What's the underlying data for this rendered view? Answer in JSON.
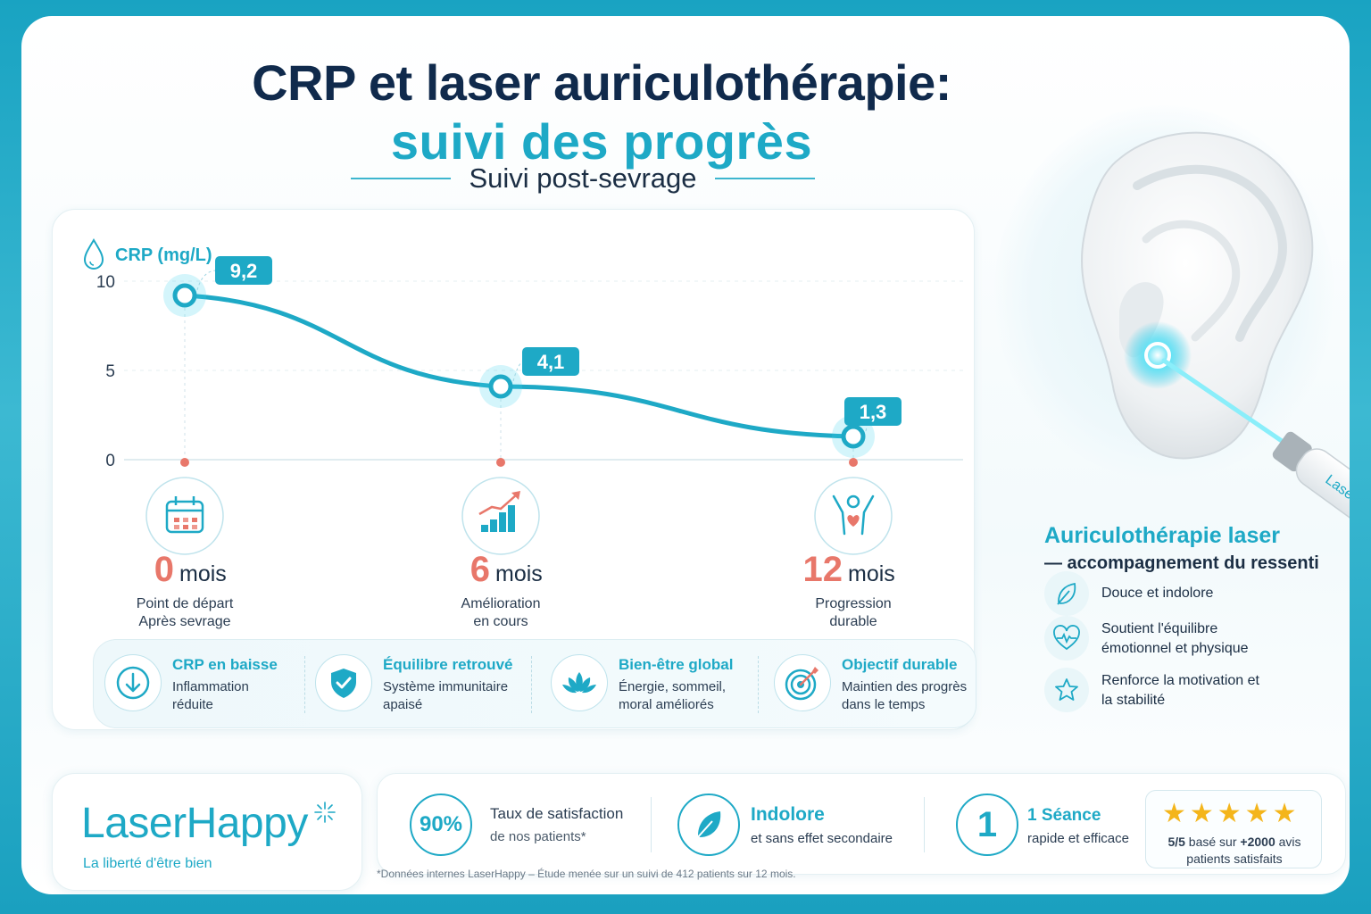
{
  "header": {
    "title_line1": "CRP et laser auriculothérapie:",
    "title_line2": "suivi des progrès",
    "subtitle": "Suivi post-sevrage"
  },
  "chart_data": {
    "type": "line",
    "ylabel": "CRP (mg/L)",
    "ylim": [
      0,
      11
    ],
    "yticks": [
      0,
      5,
      10
    ],
    "grid": true,
    "x": [
      0,
      6,
      12
    ],
    "series": [
      {
        "values": [
          9.2,
          4.1,
          1.3
        ],
        "labels": [
          "9,2",
          "4,1",
          "1,3"
        ]
      }
    ],
    "milestones": [
      {
        "number": "0",
        "unit": "mois",
        "line1": "Point de départ",
        "line2": "Après sevrage",
        "icon": "calendar-icon"
      },
      {
        "number": "6",
        "unit": "mois",
        "line1": "Amélioration",
        "line2": "en cours",
        "icon": "growth-chart-icon"
      },
      {
        "number": "12",
        "unit": "mois",
        "line1": "Progression",
        "line2": "durable",
        "icon": "person-heart-icon"
      }
    ],
    "colors": {
      "line": "#1ea9c6",
      "label_bg": "#1ea9c6",
      "milestone_number": "#e8776a",
      "axis_dot": "#e8776a"
    }
  },
  "kpis": [
    {
      "title": "CRP en baisse",
      "desc": "Inflammation réduite",
      "icon": "arrow-down-icon"
    },
    {
      "title": "Équilibre retrouvé",
      "desc": "Système immunitaire apaisé",
      "icon": "shield-check-icon"
    },
    {
      "title": "Bien-être global",
      "desc": "Énergie, sommeil, moral améliorés",
      "icon": "lotus-icon"
    },
    {
      "title": "Objectif durable",
      "desc": "Maintien des progrès dans le temps",
      "icon": "target-icon"
    }
  ],
  "side": {
    "device_label": "LaserHappy",
    "title": "Auriculothérapie laser",
    "subtitle": "— accompagnement du ressenti",
    "features": [
      {
        "text": "Douce et indolore",
        "icon": "feather-icon"
      },
      {
        "text": "Soutient l'équilibre émotionnel et physique",
        "icon": "heart-pulse-icon"
      },
      {
        "text": "Renforce la motivation et la stabilité",
        "icon": "star-icon"
      }
    ]
  },
  "brand": {
    "name": "LaserHappy",
    "tagline": "La liberté d'être bien"
  },
  "stats": {
    "satisfaction_value": "90%",
    "satisfaction_text1": "Taux de satisfaction",
    "satisfaction_text2": "de nos patients*",
    "painless_title": "Indolore",
    "painless_text": "et sans effet secondaire",
    "session_number": "1",
    "session_title": "1 Séance",
    "session_text": "rapide et efficace",
    "stars": "★★★★★",
    "rating_bold": "5/5",
    "rating_text1": " basé sur ",
    "rating_count": "+2000",
    "rating_text2": " avis",
    "rating_text3": "patients satisfaits"
  },
  "footnote": "*Données internes LaserHappy – Étude menée sur un suivi de 412 patients sur 12 mois."
}
